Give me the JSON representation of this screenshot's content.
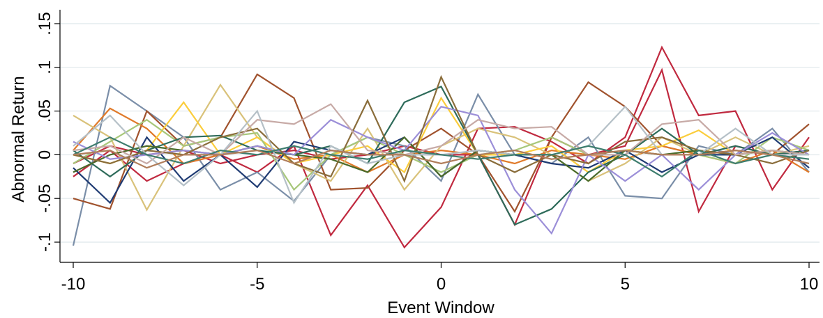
{
  "chart_data": {
    "type": "line",
    "xlabel": "Event Window",
    "ylabel": "Abnormal Return",
    "xlim": [
      -10,
      10
    ],
    "ylim": [
      -0.1,
      0.15
    ],
    "xticks": [
      -10,
      -5,
      0,
      5,
      10
    ],
    "xtick_labels": [
      "-10",
      "-5",
      "0",
      "5",
      "10"
    ],
    "yticks": [
      -0.1,
      -0.05,
      0,
      0.05,
      0.1,
      0.15
    ],
    "ytick_labels": [
      "-.1",
      "-.05",
      "0",
      ".05",
      ".1",
      ".15"
    ],
    "grid": true,
    "legend": "none",
    "x": [
      -10,
      -9,
      -8,
      -7,
      -6,
      -5,
      -4,
      -3,
      -2,
      -1,
      0,
      1,
      2,
      3,
      4,
      5,
      6,
      7,
      8,
      9,
      10
    ],
    "series": [
      {
        "color": "#c0293f",
        "values": [
          -0.025,
          0.005,
          -0.03,
          -0.01,
          0.0,
          -0.02,
          0.01,
          -0.092,
          -0.035,
          -0.106,
          -0.06,
          0.03,
          0.032,
          0.015,
          -0.01,
          0.02,
          0.123,
          0.045,
          0.05,
          -0.04,
          0.02
        ]
      },
      {
        "color": "#c0293f",
        "values": [
          -0.01,
          0.01,
          0.0,
          0.005,
          -0.01,
          0.0,
          0.005,
          -0.005,
          0.0,
          0.01,
          0.0,
          0.0,
          -0.08,
          0.02,
          0.0,
          0.01,
          0.097,
          -0.065,
          0.01,
          0.0,
          0.005
        ]
      },
      {
        "color": "#7a8ea8",
        "values": [
          -0.104,
          0.079,
          0.05,
          0.02,
          -0.04,
          -0.02,
          -0.053,
          0.0,
          0.02,
          0.01,
          -0.03,
          0.069,
          0.0,
          -0.01,
          0.02,
          -0.047,
          -0.05,
          0.01,
          0.0,
          0.03,
          -0.02
        ]
      },
      {
        "color": "#a0522d",
        "values": [
          -0.05,
          -0.062,
          0.05,
          0.01,
          0.02,
          0.092,
          0.065,
          -0.04,
          -0.038,
          0.005,
          0.03,
          0.0,
          -0.065,
          0.02,
          0.083,
          0.055,
          0.01,
          0.0,
          0.005,
          0.0,
          0.035
        ]
      },
      {
        "color": "#e07a2a",
        "values": [
          0.005,
          0.053,
          0.03,
          -0.01,
          0.0,
          0.01,
          -0.005,
          0.0,
          -0.02,
          0.0,
          0.005,
          0.0,
          -0.01,
          0.005,
          0.0,
          -0.005,
          0.01,
          0.0,
          -0.01,
          0.005,
          -0.02
        ]
      },
      {
        "color": "#d9c27a",
        "values": [
          0.045,
          0.02,
          -0.063,
          0.01,
          0.08,
          0.02,
          -0.01,
          -0.03,
          0.03,
          -0.04,
          0.01,
          0.03,
          0.02,
          0.0,
          -0.03,
          -0.01,
          0.02,
          0.0,
          0.02,
          0.0,
          0.01
        ]
      },
      {
        "color": "#fbcd3c",
        "values": [
          0.0,
          -0.01,
          0.005,
          0.06,
          0.0,
          0.02,
          -0.01,
          0.0,
          0.01,
          -0.02,
          0.065,
          0.0,
          0.0,
          0.01,
          -0.02,
          0.005,
          0.01,
          0.028,
          0.0,
          0.005,
          0.0
        ]
      },
      {
        "color": "#a7c77a",
        "values": [
          -0.01,
          0.015,
          0.04,
          0.01,
          0.02,
          0.025,
          -0.04,
          0.0,
          0.02,
          0.0,
          -0.02,
          0.0,
          0.005,
          0.02,
          0.0,
          0.005,
          0.0,
          0.0,
          -0.01,
          0.02,
          0.005
        ]
      },
      {
        "color": "#1f3b73",
        "values": [
          -0.015,
          -0.055,
          0.02,
          -0.03,
          0.0,
          -0.037,
          0.015,
          0.005,
          0.0,
          0.02,
          -0.025,
          0.005,
          0.0,
          -0.01,
          -0.015,
          0.005,
          -0.02,
          0.0,
          0.0,
          0.02,
          -0.015
        ]
      },
      {
        "color": "#2e6b5a",
        "values": [
          0.005,
          -0.025,
          0.005,
          0.02,
          0.022,
          0.005,
          0.0,
          0.01,
          -0.01,
          0.06,
          0.078,
          0.0,
          -0.08,
          -0.062,
          -0.02,
          0.0,
          0.03,
          0.0,
          0.01,
          0.0,
          0.005
        ]
      },
      {
        "color": "#4a6b2a",
        "values": [
          -0.02,
          0.0,
          0.01,
          0.005,
          0.0,
          0.01,
          0.0,
          -0.005,
          -0.02,
          0.02,
          -0.025,
          0.005,
          0.0,
          0.0,
          -0.03,
          0.005,
          0.0,
          0.005,
          0.0,
          0.005,
          0.0
        ]
      },
      {
        "color": "#9b8ed8",
        "values": [
          0.015,
          -0.005,
          0.0,
          0.005,
          0.0,
          0.01,
          0.0,
          0.04,
          0.02,
          0.005,
          0.055,
          0.045,
          -0.04,
          -0.09,
          0.0,
          -0.03,
          0.0,
          -0.04,
          0.0,
          0.025,
          0.0
        ]
      },
      {
        "color": "#8a6d3b",
        "values": [
          0.0,
          -0.01,
          0.005,
          0.0,
          0.02,
          0.03,
          -0.01,
          -0.025,
          0.062,
          -0.03,
          0.089,
          0.0,
          -0.02,
          0.0,
          -0.01,
          0.015,
          0.02,
          0.005,
          0.0,
          -0.01,
          0.005
        ]
      },
      {
        "color": "#c7aaa6",
        "values": [
          0.005,
          0.01,
          -0.01,
          0.02,
          0.0,
          0.04,
          0.035,
          0.058,
          0.005,
          0.0,
          0.01,
          0.04,
          0.03,
          0.032,
          0.0,
          0.0,
          0.035,
          0.04,
          0.0,
          0.005,
          0.0
        ]
      },
      {
        "color": "#b5c0c7",
        "values": [
          0.01,
          0.045,
          0.0,
          -0.035,
          0.0,
          0.05,
          -0.055,
          0.01,
          -0.01,
          0.0,
          0.0,
          0.005,
          0.0,
          0.0,
          0.01,
          0.055,
          0.0,
          0.0,
          0.03,
          0.0,
          0.0
        ]
      },
      {
        "color": "#3d7d6e",
        "values": [
          0.0,
          0.02,
          0.0,
          -0.01,
          0.005,
          0.0,
          0.01,
          0.0,
          -0.005,
          0.005,
          0.0,
          -0.005,
          0.0,
          0.0,
          0.01,
          0.0,
          -0.025,
          0.005,
          -0.01,
          0.0,
          -0.005
        ]
      },
      {
        "color": "#b07d5a",
        "values": [
          0.0,
          0.005,
          -0.015,
          0.0,
          0.0,
          0.005,
          -0.01,
          0.005,
          0.0,
          0.0,
          -0.01,
          0.0,
          0.005,
          -0.005,
          0.0,
          0.005,
          0.0,
          0.0,
          0.005,
          0.0,
          -0.01
        ]
      }
    ]
  }
}
